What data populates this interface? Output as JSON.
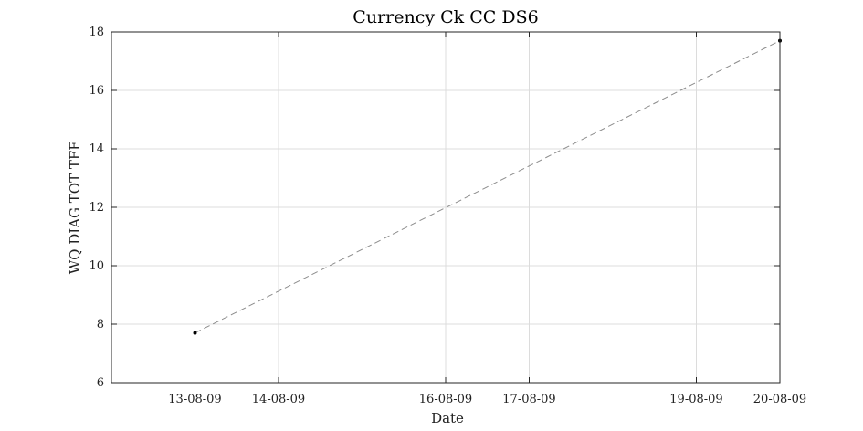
{
  "chart_data": {
    "type": "line",
    "title": "Currency Ck CC DS6",
    "xlabel": "Date",
    "ylabel": "WQ DIAG TOT TFE",
    "x_ticks": [
      "13-08-09",
      "14-08-09",
      "16-08-09",
      "17-08-09",
      "19-08-09",
      "20-08-09"
    ],
    "y_ticks": [
      "6",
      "8",
      "10",
      "12",
      "14",
      "16",
      "18"
    ],
    "ylim": [
      6,
      18
    ],
    "xlim": [
      "12-08-09",
      "20-08-09"
    ],
    "grid": true,
    "series": [
      {
        "x": [
          "13-08-09",
          "20-08-09"
        ],
        "y": [
          7.7,
          17.7
        ],
        "color": "#000000",
        "line_color": "#8c8c8c",
        "line_style": "dashed"
      }
    ]
  }
}
